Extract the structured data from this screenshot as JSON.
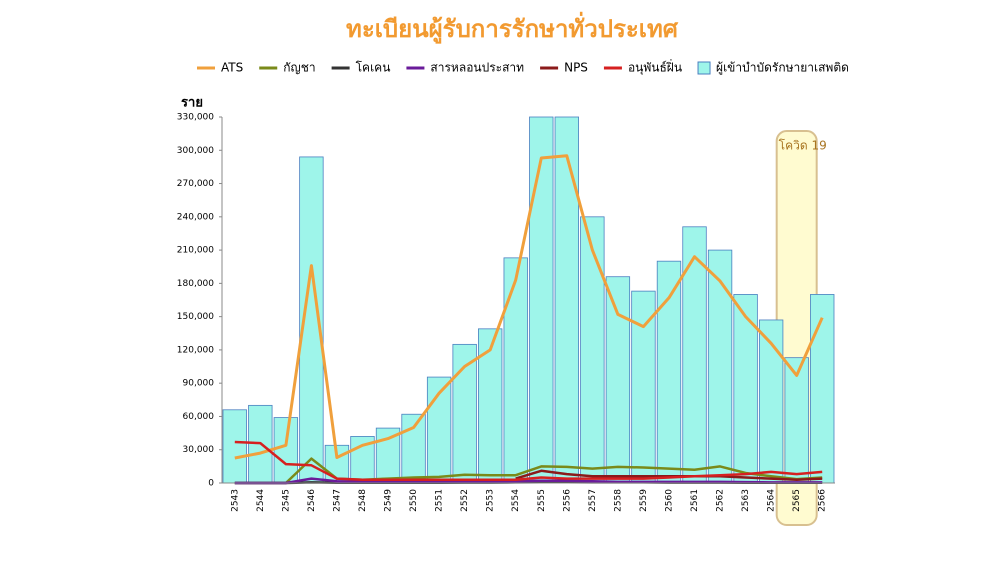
{
  "chart_data": {
    "type": "combo",
    "title": "ทะเบียนผู้รับการรักษาทั่วประเทศ",
    "y_label": "ราย",
    "annotation": "โควิด 19",
    "highlight_category": "2565",
    "categories": [
      "2543",
      "2544",
      "2545",
      "2546",
      "2547",
      "2548",
      "2549",
      "2550",
      "2551",
      "2552",
      "2553",
      "2554",
      "2555",
      "2556",
      "2557",
      "2558",
      "2559",
      "2560",
      "2561",
      "2562",
      "2563",
      "2564",
      "2565",
      "2566"
    ],
    "bar_series": {
      "name": "ผู้เข้าบำบัดรักษายาเสพติด",
      "color": "#9ef5ea",
      "values": [
        66000,
        70000,
        59000,
        294000,
        34000,
        42000,
        49500,
        62000,
        95500,
        125000,
        139000,
        203000,
        330000,
        330000,
        240000,
        186000,
        173000,
        200000,
        231000,
        210000,
        170000,
        147000,
        113000,
        170000
      ]
    },
    "series": [
      {
        "name": "ATS",
        "color": "#f0a03c",
        "values": [
          22500,
          27000,
          34000,
          196000,
          23000,
          34000,
          40000,
          50000,
          81000,
          105000,
          120000,
          183000,
          293000,
          295000,
          210000,
          152000,
          141000,
          167000,
          204000,
          182000,
          150000,
          126000,
          97000,
          149000
        ]
      },
      {
        "name": "กัญชา",
        "color": "#7a8a1a",
        "values": [
          0,
          0,
          0,
          22000,
          4000,
          3000,
          4000,
          5000,
          5500,
          7500,
          7000,
          7000,
          15000,
          14500,
          13000,
          14500,
          14000,
          13000,
          12000,
          15000,
          9000,
          6000,
          3500,
          5000
        ]
      },
      {
        "name": "โคเคน",
        "color": "#333333",
        "values": [
          0,
          0,
          0,
          500,
          200,
          200,
          200,
          300,
          300,
          400,
          400,
          500,
          600,
          600,
          500,
          500,
          500,
          400,
          400,
          400,
          300,
          300,
          300,
          300
        ]
      },
      {
        "name": "สารหลอนประสาท",
        "color": "#6a1b9a",
        "values": [
          0,
          0,
          0,
          4000,
          1500,
          1000,
          1000,
          1000,
          1000,
          1500,
          1500,
          1500,
          2000,
          2000,
          1500,
          1000,
          1000,
          1000,
          1000,
          1000,
          800,
          500,
          500,
          500
        ]
      },
      {
        "name": "NPS",
        "color": "#8b1a1a",
        "values": [
          null,
          null,
          null,
          null,
          null,
          null,
          null,
          null,
          null,
          null,
          null,
          4000,
          11000,
          8000,
          6000,
          6000,
          6000,
          6000,
          6000,
          6000,
          5000,
          4000,
          3000,
          4000
        ]
      },
      {
        "name": "อนุพันธ์ฝิ่น",
        "color": "#d62020",
        "values": [
          37000,
          36000,
          17000,
          16000,
          4000,
          3000,
          3000,
          3000,
          3000,
          3000,
          3000,
          3000,
          5000,
          4000,
          4000,
          4000,
          4000,
          5000,
          6000,
          7000,
          8000,
          10000,
          8000,
          10000
        ]
      }
    ],
    "ylim": [
      0,
      330000
    ],
    "yticks": [
      0,
      {
        "value": 30000,
        "label": "30,000"
      },
      {
        "value": 60000,
        "label": "60,000"
      },
      {
        "value": 90000,
        "label": "90,000"
      },
      {
        "value": 120000,
        "label": "120,000"
      },
      {
        "value": 150000,
        "label": "150,000"
      },
      {
        "value": 180000,
        "label": "180,000"
      },
      {
        "value": 210000,
        "label": "210,000"
      },
      {
        "value": 240000,
        "label": "240,000"
      },
      {
        "value": 270000,
        "label": "270,000"
      },
      {
        "value": 300000,
        "label": "300,000"
      },
      {
        "value": 330000,
        "label": "330,000"
      }
    ],
    "grid": false
  }
}
